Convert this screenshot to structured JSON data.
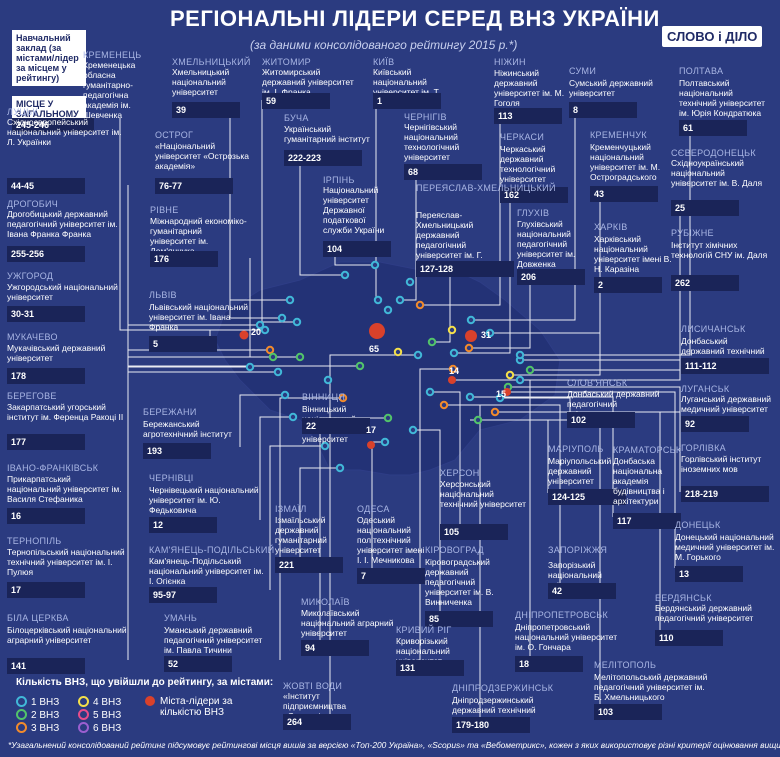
{
  "header": {
    "title": "РЕГІОНАЛЬНІ ЛІДЕРИ СЕРЕД ВНЗ УКРАЇНИ",
    "subtitle": "(за даними консолідованого рейтингу 2015 р.*)",
    "logo": "СЛОВО і ДІЛО"
  },
  "key": {
    "box1": "Навчальний заклад (за містами/лідер за місцем у рейтингу)",
    "box2": "МІСЦЕ У ЗАГАЛЬНОМУ РЕЙТИНГУ",
    "box2_value": "245-246"
  },
  "colors": {
    "bg": "#2b3b80",
    "red": "#d9412b",
    "dark": "#1a2458"
  },
  "entries": [
    {
      "city": "КРЕМЕНЕЦЬ",
      "uni": "Кременецька обласна гуманітарно-педагогічна академія ім. Шевченка",
      "rank": ""
    },
    {
      "city": "ХМЕЛЬНИЦЬКИЙ",
      "uni": "Хмельницький національний університет",
      "rank": "39"
    },
    {
      "city": "ЖИТОМИР",
      "uni": "Житомирський державний університет ім. І. Франка",
      "rank": "59"
    },
    {
      "city": "КИЇВ",
      "uni": "Київський національний університет ім. Т. Шевченка",
      "rank": "1"
    },
    {
      "city": "НІЖИН",
      "uni": "Ніжинський державний університет ім. М. Гоголя",
      "rank": "113"
    },
    {
      "city": "СУМИ",
      "uni": "Сумський державний університет",
      "rank": "8"
    },
    {
      "city": "ПОЛТАВА",
      "uni": "Полтавський національний технічний університет ім. Юрія Кондратюка",
      "rank": "61"
    },
    {
      "city": "ЛУЦЬК",
      "uni": "Східноєвропейський національний університет ім. Л. Українки",
      "rank": "44-45"
    },
    {
      "city": "ОСТРОГ",
      "uni": "«Національний університет «Острозька академія»",
      "rank": "76-77"
    },
    {
      "city": "БУЧА",
      "uni": "Український гуманітарний інститут",
      "rank": "222-223"
    },
    {
      "city": "ЧЕРНІГІВ",
      "uni": "Чернігівський національний технологічний університет",
      "rank": "68"
    },
    {
      "city": "ЧЕРКАСИ",
      "uni": "Черкаський державний технологічний університет",
      "rank": "162"
    },
    {
      "city": "КРЕМЕНЧУК",
      "uni": "Кременчуцький національний університет ім. М. Остроградського",
      "rank": "43"
    },
    {
      "city": "СЄВЕРОДОНЕЦЬК",
      "uni": "Східноукраїнський національний університет ім. В. Даля",
      "rank": "25"
    },
    {
      "city": "ДРОГОБИЧ",
      "uni": "Дрогобицький державний педагогічний університет ім. Івана Франка Франка",
      "rank": "255-256"
    },
    {
      "city": "РІВНЕ",
      "uni": "Міжнародний економіко-гуманітарний університет ім. Дем'янчука",
      "rank": "176"
    },
    {
      "city": "ІРПІНЬ",
      "uni": "Національний університет Державної податкової служби України",
      "rank": "104"
    },
    {
      "city": "ПЕРЕЯСЛАВ-ХМЕЛЬНИЦЬКИЙ",
      "uni": "Переяслав-Хмельницький державний педагогічний університет ім. Г. Сковороди",
      "rank": "127-128"
    },
    {
      "city": "ГЛУХІВ",
      "uni": "Глухівський національний педагогічний університет ім. Довженка",
      "rank": "206"
    },
    {
      "city": "ХАРКІВ",
      "uni": "Харківський національний університет імені В. Н. Каразіна",
      "rank": "2"
    },
    {
      "city": "РУБІЖНЕ",
      "uni": "Інститут хімічних технологій СНУ ім. Даля",
      "rank": "262"
    },
    {
      "city": "УЖГОРОД",
      "uni": "Ужгородський національний університет",
      "rank": "30-31"
    },
    {
      "city": "ЛЬВІВ",
      "uni": "Львівський національний університет ім. Івана Франка",
      "rank": "5"
    },
    {
      "city": "ЛИСИЧАНСЬК",
      "uni": "Донбаський державний технічний університет",
      "rank": "111-112"
    },
    {
      "city": "МУКАЧЕВО",
      "uni": "Мукачівський державний університет",
      "rank": "178"
    },
    {
      "city": "СЛОВ'ЯНСЬК",
      "uni": "Донбаський державний педагогічний університет",
      "rank": "102"
    },
    {
      "city": "ЛУГАНСЬК",
      "uni": "Луганський державний медичний університет",
      "rank": "92"
    },
    {
      "city": "БЕРЕГОВЕ",
      "uni": "Закарпатський угорський інститут ім. Ференца Ракоці ІІ",
      "rank": "177"
    },
    {
      "city": "БЕРЕЖАНИ",
      "uni": "Бережанський агротехнічний інститут",
      "rank": "193"
    },
    {
      "city": "ВІННИЦЯ",
      "uni": "Вінницький національний технічний університет",
      "rank": "22"
    },
    {
      "city": "ГОРЛІВКА",
      "uni": "Горлівський інститут іноземних мов",
      "rank": "218-219"
    },
    {
      "city": "МАРІУПОЛЬ",
      "uni": "Маріупольський державний університет",
      "rank": "124-125"
    },
    {
      "city": "КРАМАТОРСЬК",
      "uni": "Донбаська національна академія будівництва і архітектури",
      "rank": "117"
    },
    {
      "city": "ІВАНО-ФРАНКІВСЬК",
      "uni": "Прикарпатський національний університет ім. Василя Стефаника",
      "rank": "16"
    },
    {
      "city": "ЧЕРНІВЦІ",
      "uni": "Чернівецький національний університет ім. Ю. Федьковича",
      "rank": "12"
    },
    {
      "city": "ХЕРСОН",
      "uni": "Херсонський національний технічний університет",
      "rank": "105"
    },
    {
      "city": "ДОНЕЦЬК",
      "uni": "Донецький національний медичний університет ім. М. Горького",
      "rank": "13"
    },
    {
      "city": "ІЗМАЇЛ",
      "uni": "Ізмаїльський державний гуманітарний університет",
      "rank": "221"
    },
    {
      "city": "ОДЕСА",
      "uni": "Одеський національний політехнічний університет імені І. І. Мечникова",
      "rank": "7"
    },
    {
      "city": "ТЕРНОПІЛЬ",
      "uni": "Тернопільський національний технічний університет ім. І. Пулюя",
      "rank": "17"
    },
    {
      "city": "КАМ'ЯНЕЦЬ-ПОДІЛЬСЬКИЙ",
      "uni": "Кам'янець-Подільський національний університет ім. І. Огієнка",
      "rank": "95-97"
    },
    {
      "city": "КІРОВОГРАД",
      "uni": "Кіровоградський державний педагогічний університет ім. В. Винниченка",
      "rank": "85"
    },
    {
      "city": "ЗАПОРІЖЖЯ",
      "uni": "Запорізький національний університет",
      "rank": "42"
    },
    {
      "city": "БЕРДЯНСЬК",
      "uni": "Бердянський державний педагогічний університет",
      "rank": "110"
    },
    {
      "city": "БІЛА ЦЕРКВА",
      "uni": "Білоцерківський національний аграрний університет",
      "rank": "141"
    },
    {
      "city": "УМАНЬ",
      "uni": "Уманський державний педагогічний університет ім. Павла Тичини",
      "rank": "52"
    },
    {
      "city": "МИКОЛАЇВ",
      "uni": "Миколаївський національний аграрний університет",
      "rank": "94"
    },
    {
      "city": "КРИВИЙ РІГ",
      "uni": "Криворізький національний університет",
      "rank": "131"
    },
    {
      "city": "ДНІПРОПЕТРОВСЬК",
      "uni": "Дніпропетровський національний університет ім. О. Гончара",
      "rank": "18"
    },
    {
      "city": "МЕЛІТОПОЛЬ",
      "uni": "Мелітопольський державний педагогічний університет ім. Б. Хмельницького",
      "rank": "103"
    },
    {
      "city": "ЖОВТІ ВОДИ",
      "uni": "«Інститут підприємництва «Стратегія»",
      "rank": "264"
    },
    {
      "city": "ДНІПРОДЗЕРЖИНСЬК",
      "uni": "Дніпродзержинський державний технічний університет",
      "rank": "179-180"
    }
  ],
  "map_counts": [
    "20",
    "65",
    "31",
    "14",
    "15",
    "17"
  ],
  "legend": {
    "title": "Кількість ВНЗ, що увійшли до рейтингу, за містами:",
    "items": [
      {
        "label": "1 ВНЗ",
        "color": "#41b8d8"
      },
      {
        "label": "2 ВНЗ",
        "color": "#52c46a"
      },
      {
        "label": "3 ВНЗ",
        "color": "#f28b2c"
      },
      {
        "label": "4 ВНЗ",
        "color": "#f5e04a"
      },
      {
        "label": "5 ВНЗ",
        "color": "#e84c8a"
      },
      {
        "label": "6 ВНЗ",
        "color": "#9b5fd0"
      }
    ],
    "red_label": "Міста-лідери за кількістю ВНЗ"
  },
  "footnote": "*Узагальнений консолідований рейтинг підсумовує рейтингові місця вишів за версією «Топ-200 Україна», «Scopus» та «Вебометрикс», кожен з яких використовує різні критерії оцінювання вищих навчальних закладів"
}
